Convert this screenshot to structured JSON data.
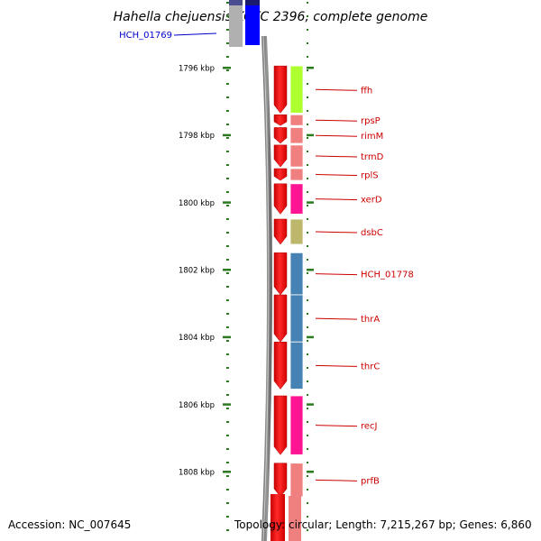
{
  "title": "Hahella chejuensis KCTC 2396, complete genome",
  "accession_text": "Accession: NC_007645",
  "topology_text": "Topology: circular; Length: 7,215,267 bp; Genes: 6,860",
  "colors": {
    "backbone": "#808080",
    "scale": "#2a7a1e",
    "gene_red": "#ff0000",
    "label_red": "#cc0000",
    "label_blue": "#0000cc"
  },
  "scale_ticks": [
    {
      "label": "1796 kbp",
      "kbp": 1796
    },
    {
      "label": "1798 kbp",
      "kbp": 1798
    },
    {
      "label": "1800 kbp",
      "kbp": 1800
    },
    {
      "label": "1802 kbp",
      "kbp": 1802
    },
    {
      "label": "1804 kbp",
      "kbp": 1804
    },
    {
      "label": "1806 kbp",
      "kbp": 1806
    },
    {
      "label": "1808 kbp",
      "kbp": 1808
    }
  ],
  "genes": [
    {
      "name": "HCH_01769",
      "start_kbp": 1794.85,
      "end_kbp": 1795.45,
      "color": "#0000ff",
      "strand": "other",
      "label_color": "#0000cc"
    },
    {
      "name": "ffh",
      "start_kbp": 1795.95,
      "end_kbp": 1797.35,
      "color": "#adff2f",
      "strand": "main",
      "label_color": "#cc0000"
    },
    {
      "name": "rpsP",
      "start_kbp": 1797.4,
      "end_kbp": 1797.72,
      "color": "#f08080",
      "strand": "main",
      "label_color": "#cc0000"
    },
    {
      "name": "rimM",
      "start_kbp": 1797.78,
      "end_kbp": 1798.25,
      "color": "#f08080",
      "strand": "main",
      "label_color": "#cc0000"
    },
    {
      "name": "trmD",
      "start_kbp": 1798.3,
      "end_kbp": 1798.95,
      "color": "#f08080",
      "strand": "main",
      "label_color": "#cc0000"
    },
    {
      "name": "rplS",
      "start_kbp": 1799.0,
      "end_kbp": 1799.35,
      "color": "#f08080",
      "strand": "main",
      "label_color": "#cc0000"
    },
    {
      "name": "xerD",
      "start_kbp": 1799.45,
      "end_kbp": 1800.35,
      "color": "#ff1493",
      "strand": "main",
      "label_color": "#cc0000"
    },
    {
      "name": "dsbC",
      "start_kbp": 1800.5,
      "end_kbp": 1801.25,
      "color": "#bdb76b",
      "strand": "main",
      "label_color": "#cc0000"
    },
    {
      "name": "HCH_01778",
      "start_kbp": 1801.5,
      "end_kbp": 1802.75,
      "color": "#4682b4",
      "strand": "main",
      "label_color": "#cc0000"
    },
    {
      "name": "thrA",
      "start_kbp": 1802.75,
      "end_kbp": 1804.15,
      "color": "#4682b4",
      "strand": "main",
      "label_color": "#cc0000"
    },
    {
      "name": "thrC",
      "start_kbp": 1804.15,
      "end_kbp": 1805.55,
      "color": "#4682b4",
      "strand": "main",
      "label_color": "#cc0000"
    },
    {
      "name": "recJ",
      "start_kbp": 1805.75,
      "end_kbp": 1807.5,
      "color": "#ff1493",
      "strand": "main",
      "label_color": "#cc0000"
    },
    {
      "name": "prfB",
      "start_kbp": 1807.75,
      "end_kbp": 1808.75,
      "color": "#f08080",
      "strand": "main",
      "label_color": "#cc0000"
    }
  ]
}
